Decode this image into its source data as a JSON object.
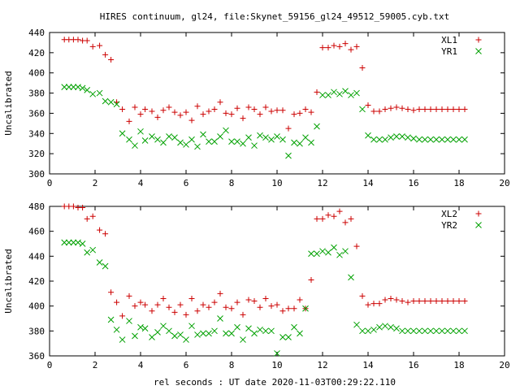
{
  "chart_data": [
    {
      "type": "scatter",
      "title": "HIRES continuum, gl24, file:Skynet_59156_gl24_49512_59005.cyb.txt",
      "ylabel": "Uncalibrated",
      "xlabel": "",
      "xlim": [
        0,
        20
      ],
      "ylim": [
        300,
        440
      ],
      "xticks": [
        0,
        2,
        4,
        6,
        8,
        10,
        12,
        14,
        16,
        18,
        20
      ],
      "yticks": [
        300,
        320,
        340,
        360,
        380,
        400,
        420,
        440
      ],
      "grid": false,
      "legend": "top-right",
      "series": [
        {
          "name": "XL1",
          "marker": "plus",
          "color": "#cc0000",
          "x": [
            0.65,
            0.85,
            1.05,
            1.25,
            1.45,
            1.65,
            1.9,
            2.2,
            2.45,
            2.7,
            2.95,
            3.2,
            3.5,
            3.75,
            4.0,
            4.2,
            4.5,
            4.75,
            5.0,
            5.25,
            5.5,
            5.75,
            6.0,
            6.25,
            6.5,
            6.75,
            7.0,
            7.25,
            7.5,
            7.75,
            8.0,
            8.25,
            8.5,
            8.75,
            9.0,
            9.25,
            9.5,
            9.75,
            10.0,
            10.25,
            10.5,
            10.75,
            11.0,
            11.25,
            11.5,
            11.75,
            12.0,
            12.25,
            12.5,
            12.75,
            13.0,
            13.25,
            13.5,
            13.75,
            14.0,
            14.25,
            14.5,
            14.75,
            15.0,
            15.25,
            15.5,
            15.75,
            16.0,
            16.25,
            16.5,
            16.75,
            17.0,
            17.25,
            17.5,
            17.75,
            18.0,
            18.25
          ],
          "y": [
            433,
            433,
            433,
            433,
            432,
            432,
            426,
            427,
            418,
            413,
            371,
            364,
            352,
            366,
            359,
            364,
            362,
            356,
            363,
            366,
            361,
            358,
            361,
            353,
            367,
            359,
            362,
            364,
            371,
            360,
            359,
            365,
            355,
            366,
            364,
            359,
            366,
            362,
            363,
            363,
            345,
            359,
            360,
            364,
            361,
            381,
            425,
            425,
            427,
            426,
            429,
            423,
            426,
            405,
            368,
            362,
            362,
            364,
            365,
            366,
            365,
            364,
            363,
            364,
            364,
            364,
            364,
            364,
            364,
            364,
            364,
            364
          ]
        },
        {
          "name": "YR1",
          "marker": "cross",
          "color": "#00a000",
          "x": [
            0.65,
            0.85,
            1.05,
            1.25,
            1.45,
            1.65,
            1.9,
            2.2,
            2.45,
            2.7,
            2.95,
            3.2,
            3.5,
            3.75,
            4.0,
            4.2,
            4.5,
            4.75,
            5.0,
            5.25,
            5.5,
            5.75,
            6.0,
            6.25,
            6.5,
            6.75,
            7.0,
            7.25,
            7.5,
            7.75,
            8.0,
            8.25,
            8.5,
            8.75,
            9.0,
            9.25,
            9.5,
            9.75,
            10.0,
            10.25,
            10.5,
            10.75,
            11.0,
            11.25,
            11.5,
            11.75,
            12.0,
            12.25,
            12.5,
            12.75,
            13.0,
            13.25,
            13.5,
            13.75,
            14.0,
            14.25,
            14.5,
            14.75,
            15.0,
            15.25,
            15.5,
            15.75,
            16.0,
            16.25,
            16.5,
            16.75,
            17.0,
            17.25,
            17.5,
            17.75,
            18.0,
            18.25
          ],
          "y": [
            386,
            386,
            386,
            386,
            385,
            383,
            379,
            380,
            372,
            371,
            369,
            340,
            334,
            328,
            342,
            333,
            337,
            334,
            331,
            337,
            336,
            331,
            329,
            334,
            327,
            339,
            332,
            332,
            337,
            343,
            332,
            332,
            330,
            336,
            328,
            338,
            336,
            334,
            337,
            334,
            318,
            331,
            330,
            336,
            331,
            347,
            378,
            378,
            381,
            379,
            382,
            378,
            380,
            364,
            338,
            334,
            334,
            334,
            336,
            337,
            337,
            336,
            335,
            334,
            334,
            334,
            334,
            334,
            334,
            334,
            334,
            334
          ]
        }
      ]
    },
    {
      "type": "scatter",
      "title": "",
      "ylabel": "Uncalibrated",
      "xlabel": "rel seconds : UT date 2020-11-03T00:29:22.110",
      "xlim": [
        0,
        20
      ],
      "ylim": [
        360,
        480
      ],
      "xticks": [
        0,
        2,
        4,
        6,
        8,
        10,
        12,
        14,
        16,
        18,
        20
      ],
      "yticks": [
        360,
        380,
        400,
        420,
        440,
        460,
        480
      ],
      "grid": false,
      "legend": "top-right",
      "series": [
        {
          "name": "XL2",
          "marker": "plus",
          "color": "#cc0000",
          "x": [
            0.65,
            0.85,
            1.05,
            1.25,
            1.45,
            1.65,
            1.9,
            2.2,
            2.45,
            2.7,
            2.95,
            3.2,
            3.5,
            3.75,
            4.0,
            4.2,
            4.5,
            4.75,
            5.0,
            5.25,
            5.5,
            5.75,
            6.0,
            6.25,
            6.5,
            6.75,
            7.0,
            7.25,
            7.5,
            7.75,
            8.0,
            8.25,
            8.5,
            8.75,
            9.0,
            9.25,
            9.5,
            9.75,
            10.0,
            10.25,
            10.5,
            10.75,
            11.0,
            11.25,
            11.5,
            11.75,
            12.0,
            12.25,
            12.5,
            12.75,
            13.0,
            13.25,
            13.5,
            13.75,
            14.0,
            14.25,
            14.5,
            14.75,
            15.0,
            15.25,
            15.5,
            15.75,
            16.0,
            16.25,
            16.5,
            16.75,
            17.0,
            17.25,
            17.5,
            17.75,
            18.0,
            18.25
          ],
          "y": [
            480,
            480,
            480,
            479,
            479,
            470,
            472,
            461,
            458,
            411,
            403,
            392,
            408,
            400,
            403,
            401,
            396,
            401,
            406,
            399,
            395,
            401,
            393,
            406,
            396,
            401,
            399,
            403,
            410,
            399,
            398,
            403,
            393,
            405,
            404,
            399,
            406,
            400,
            401,
            396,
            398,
            398,
            405,
            398,
            421,
            470,
            470,
            473,
            472,
            476,
            467,
            470,
            448,
            408,
            401,
            402,
            402,
            405,
            406,
            405,
            404,
            403,
            404,
            404,
            404,
            404,
            404,
            404,
            404,
            404,
            404,
            404
          ]
        },
        {
          "name": "YR2",
          "marker": "cross",
          "color": "#00a000",
          "x": [
            0.65,
            0.85,
            1.05,
            1.25,
            1.45,
            1.65,
            1.9,
            2.2,
            2.45,
            2.7,
            2.95,
            3.2,
            3.5,
            3.75,
            4.0,
            4.2,
            4.5,
            4.75,
            5.0,
            5.25,
            5.5,
            5.75,
            6.0,
            6.25,
            6.5,
            6.75,
            7.0,
            7.25,
            7.5,
            7.75,
            8.0,
            8.25,
            8.5,
            8.75,
            9.0,
            9.25,
            9.5,
            9.75,
            10.0,
            10.25,
            10.5,
            10.75,
            11.0,
            11.25,
            11.5,
            11.75,
            12.0,
            12.25,
            12.5,
            12.75,
            13.0,
            13.25,
            13.5,
            13.75,
            14.0,
            14.25,
            14.5,
            14.75,
            15.0,
            15.25,
            15.5,
            15.75,
            16.0,
            16.25,
            16.5,
            16.75,
            17.0,
            17.25,
            17.5,
            17.75,
            18.0,
            18.25
          ],
          "y": [
            451,
            451,
            451,
            451,
            450,
            443,
            445,
            435,
            432,
            389,
            381,
            373,
            388,
            376,
            383,
            382,
            375,
            379,
            384,
            380,
            376,
            377,
            373,
            384,
            377,
            378,
            378,
            380,
            390,
            378,
            378,
            383,
            373,
            382,
            378,
            381,
            380,
            380,
            362,
            375,
            375,
            383,
            378,
            398,
            442,
            442,
            444,
            443,
            447,
            441,
            444,
            423,
            385,
            380,
            380,
            381,
            383,
            384,
            383,
            382,
            380,
            380,
            380,
            380,
            380,
            380,
            380,
            380,
            380,
            380,
            380,
            380
          ]
        }
      ]
    }
  ]
}
